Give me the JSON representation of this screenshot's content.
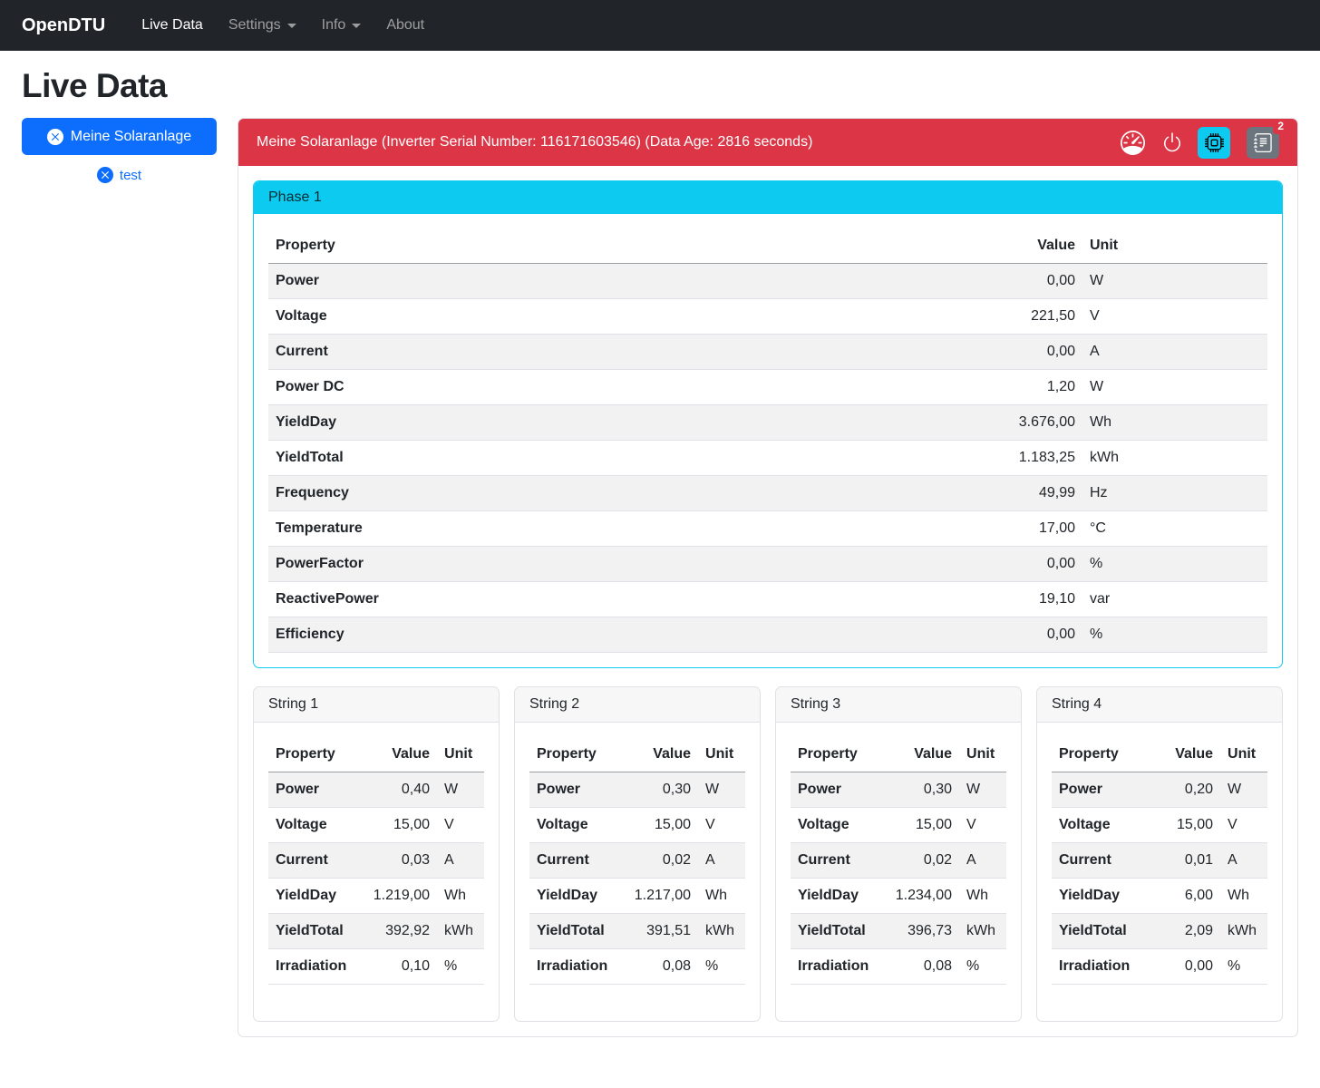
{
  "navbar": {
    "brand": "OpenDTU",
    "items": [
      {
        "label": "Live Data",
        "active": true,
        "dropdown": false
      },
      {
        "label": "Settings",
        "active": false,
        "dropdown": true
      },
      {
        "label": "Info",
        "active": false,
        "dropdown": true
      },
      {
        "label": "About",
        "active": false,
        "dropdown": false
      }
    ]
  },
  "page_title": "Live Data",
  "sidebar": {
    "selected_inverter": "Meine Solaranlage",
    "other_inverter": "test"
  },
  "inverter_panel": {
    "title": "Meine Solaranlage (Inverter Serial Number: 116171603546) (Data Age: 2816 seconds)",
    "badge_count": "2",
    "icons": [
      "speedometer-icon",
      "power-icon",
      "cpu-icon",
      "journal-text-icon"
    ]
  },
  "colors": {
    "navbar_bg": "#212529",
    "primary": "#0d6efd",
    "danger": "#dc3545",
    "info": "#0dcaf0",
    "secondary": "#6c757d"
  },
  "phase": {
    "title": "Phase 1",
    "columns": [
      "Property",
      "Value",
      "Unit"
    ],
    "rows": [
      [
        "Power",
        "0,00",
        "W"
      ],
      [
        "Voltage",
        "221,50",
        "V"
      ],
      [
        "Current",
        "0,00",
        "A"
      ],
      [
        "Power DC",
        "1,20",
        "W"
      ],
      [
        "YieldDay",
        "3.676,00",
        "Wh"
      ],
      [
        "YieldTotal",
        "1.183,25",
        "kWh"
      ],
      [
        "Frequency",
        "49,99",
        "Hz"
      ],
      [
        "Temperature",
        "17,00",
        "°C"
      ],
      [
        "PowerFactor",
        "0,00",
        "%"
      ],
      [
        "ReactivePower",
        "19,10",
        "var"
      ],
      [
        "Efficiency",
        "0,00",
        "%"
      ]
    ]
  },
  "strings": [
    {
      "title": "String 1",
      "columns": [
        "Property",
        "Value",
        "Unit"
      ],
      "rows": [
        [
          "Power",
          "0,40",
          "W"
        ],
        [
          "Voltage",
          "15,00",
          "V"
        ],
        [
          "Current",
          "0,03",
          "A"
        ],
        [
          "YieldDay",
          "1.219,00",
          "Wh"
        ],
        [
          "YieldTotal",
          "392,92",
          "kWh"
        ],
        [
          "Irradiation",
          "0,10",
          "%"
        ]
      ]
    },
    {
      "title": "String 2",
      "columns": [
        "Property",
        "Value",
        "Unit"
      ],
      "rows": [
        [
          "Power",
          "0,30",
          "W"
        ],
        [
          "Voltage",
          "15,00",
          "V"
        ],
        [
          "Current",
          "0,02",
          "A"
        ],
        [
          "YieldDay",
          "1.217,00",
          "Wh"
        ],
        [
          "YieldTotal",
          "391,51",
          "kWh"
        ],
        [
          "Irradiation",
          "0,08",
          "%"
        ]
      ]
    },
    {
      "title": "String 3",
      "columns": [
        "Property",
        "Value",
        "Unit"
      ],
      "rows": [
        [
          "Power",
          "0,30",
          "W"
        ],
        [
          "Voltage",
          "15,00",
          "V"
        ],
        [
          "Current",
          "0,02",
          "A"
        ],
        [
          "YieldDay",
          "1.234,00",
          "Wh"
        ],
        [
          "YieldTotal",
          "396,73",
          "kWh"
        ],
        [
          "Irradiation",
          "0,08",
          "%"
        ]
      ]
    },
    {
      "title": "String 4",
      "columns": [
        "Property",
        "Value",
        "Unit"
      ],
      "rows": [
        [
          "Power",
          "0,20",
          "W"
        ],
        [
          "Voltage",
          "15,00",
          "V"
        ],
        [
          "Current",
          "0,01",
          "A"
        ],
        [
          "YieldDay",
          "6,00",
          "Wh"
        ],
        [
          "YieldTotal",
          "2,09",
          "kWh"
        ],
        [
          "Irradiation",
          "0,00",
          "%"
        ]
      ]
    }
  ]
}
